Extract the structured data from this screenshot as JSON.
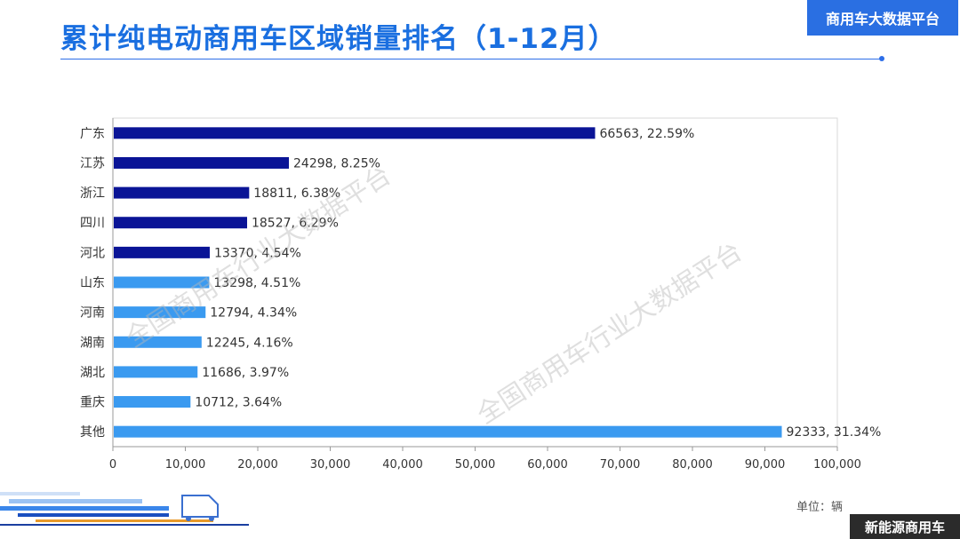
{
  "header": {
    "title": "累计纯电动商用车区域销量排名（1-12月）",
    "platform_badge": "商用车大数据平台"
  },
  "footer": {
    "unit": "单位：辆",
    "brand": "新能源商用车"
  },
  "watermark": "全国商用车行业大数据平台",
  "colors": {
    "dark_bar": "#0a1496",
    "light_bar": "#3a9af0",
    "accent": "#2a6fe2"
  },
  "chart_data": {
    "type": "bar",
    "orientation": "horizontal",
    "categories": [
      "广东",
      "江苏",
      "浙江",
      "四川",
      "河北",
      "山东",
      "河南",
      "湖南",
      "湖北",
      "重庆",
      "其他"
    ],
    "values": [
      66563,
      24298,
      18811,
      18527,
      13370,
      13298,
      12794,
      12245,
      11686,
      10712,
      92333
    ],
    "labels": [
      "66563, 22.59%",
      "24298, 8.25%",
      "18811, 6.38%",
      "18527, 6.29%",
      "13370, 4.54%",
      "13298, 4.51%",
      "12794, 4.34%",
      "12245, 4.16%",
      "11686, 3.97%",
      "10712, 3.64%",
      "92333, 31.34%"
    ],
    "highlight_count": 5,
    "xlim": [
      0,
      100000
    ],
    "xticks": [
      0,
      10000,
      20000,
      30000,
      40000,
      50000,
      60000,
      70000,
      80000,
      90000,
      100000
    ],
    "xtick_labels": [
      "0",
      "10,000",
      "20,000",
      "30,000",
      "40,000",
      "50,000",
      "60,000",
      "70,000",
      "80,000",
      "90,000",
      "100,000"
    ],
    "grid": false
  }
}
